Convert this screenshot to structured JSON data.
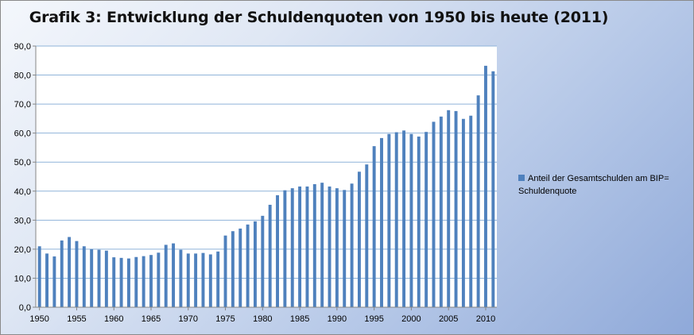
{
  "chart_data": {
    "type": "bar",
    "title": "Grafik 3: Entwicklung der Schuldenquoten von 1950 bis heute (2011)",
    "xlabel": "",
    "ylabel": "",
    "ylim": [
      0,
      90
    ],
    "yticks": [
      "0,0",
      "10,0",
      "20,0",
      "30,0",
      "40,0",
      "50,0",
      "60,0",
      "70,0",
      "80,0",
      "90,0"
    ],
    "xtick_labels": [
      "1950",
      "1955",
      "1960",
      "1965",
      "1970",
      "1975",
      "1980",
      "1985",
      "1990",
      "1995",
      "2000",
      "2005",
      "2010"
    ],
    "grid": true,
    "legend_position": "right",
    "bar_color": "#4f81bd",
    "categories": [
      1950,
      1951,
      1952,
      1953,
      1954,
      1955,
      1956,
      1957,
      1958,
      1959,
      1960,
      1961,
      1962,
      1963,
      1964,
      1965,
      1966,
      1967,
      1968,
      1969,
      1970,
      1971,
      1972,
      1973,
      1974,
      1975,
      1976,
      1977,
      1978,
      1979,
      1980,
      1981,
      1982,
      1983,
      1984,
      1985,
      1986,
      1987,
      1988,
      1989,
      1990,
      1991,
      1992,
      1993,
      1994,
      1995,
      1996,
      1997,
      1998,
      1999,
      2000,
      2001,
      2002,
      2003,
      2004,
      2005,
      2006,
      2007,
      2008,
      2009,
      2010,
      2011
    ],
    "series": [
      {
        "name": "Anteil der Gesamtschulden am BIP= Schuldenquote",
        "values": [
          21.0,
          18.5,
          17.5,
          23.0,
          24.2,
          22.8,
          21.0,
          20.0,
          19.8,
          19.5,
          17.2,
          17.0,
          16.8,
          17.3,
          17.6,
          18.0,
          18.8,
          21.5,
          22.0,
          19.8,
          18.5,
          18.5,
          18.7,
          18.2,
          19.2,
          24.7,
          26.2,
          27.1,
          28.5,
          29.6,
          31.5,
          35.3,
          38.6,
          40.3,
          41.0,
          41.6,
          41.6,
          42.4,
          42.9,
          41.6,
          41.0,
          40.4,
          42.6,
          46.7,
          49.2,
          55.5,
          58.3,
          59.7,
          60.3,
          60.9,
          59.7,
          58.8,
          60.4,
          63.9,
          65.7,
          67.9,
          67.6,
          64.9,
          66.0,
          73.0,
          83.2,
          81.3
        ]
      }
    ]
  },
  "legend": {
    "label": "Anteil der Gesamtschulden  am BIP= Schuldenquote"
  }
}
